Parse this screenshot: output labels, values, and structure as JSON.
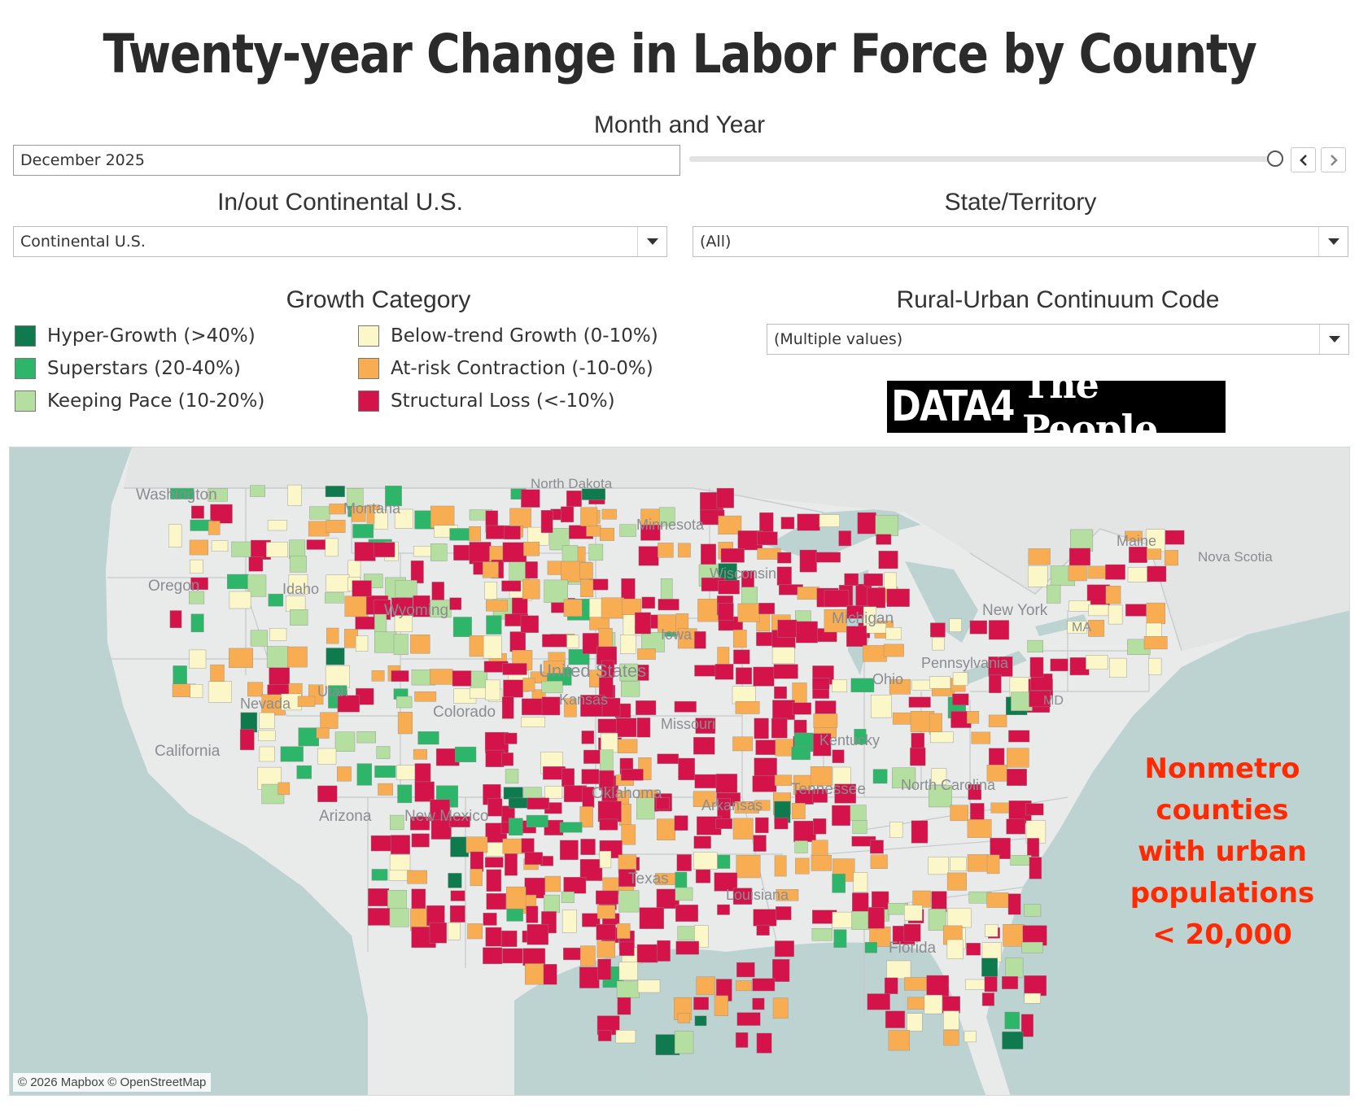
{
  "title": "Twenty-year Change in Labor Force by County",
  "month_year": {
    "label": "Month and Year",
    "value": "December 2025",
    "slider_position": 1.0
  },
  "continental": {
    "label": "In/out Continental U.S.",
    "value": "Continental U.S."
  },
  "state": {
    "label": "State/Territory",
    "value": "(All)"
  },
  "growth_category": {
    "label": "Growth Category",
    "items": [
      {
        "label": "Hyper-Growth (>40%)",
        "color": "#0f7a4e"
      },
      {
        "label": "Superstars (20-40%)",
        "color": "#2db56a"
      },
      {
        "label": "Keeping Pace (10-20%)",
        "color": "#b5dfa0"
      },
      {
        "label": "Below-trend Growth (0-10%)",
        "color": "#fbf7c9"
      },
      {
        "label": "At-risk Contraction (-10-0%)",
        "color": "#f9ad52"
      },
      {
        "label": "Structural Loss (<-10%)",
        "color": "#d4134b"
      }
    ]
  },
  "rucc": {
    "label": "Rural-Urban Continuum Code",
    "value": "(Multiple values)"
  },
  "logo": {
    "part1": "DATA4",
    "part2": "The People"
  },
  "map": {
    "attribution": "© 2026 Mapbox © OpenStreetMap",
    "annotation_lines": [
      "Nonmetro",
      "counties",
      "with urban",
      "populations",
      "< 20,000"
    ],
    "labels": [
      "Washington",
      "Oregon",
      "California",
      "Nevada",
      "Arizona",
      "New Mexico",
      "Idaho",
      "Montana",
      "Wyoming",
      "Utah",
      "Colorado",
      "North Dakota",
      "Minnesota",
      "Wisconsin",
      "Michigan",
      "Iowa",
      "United States",
      "Kansas",
      "Missouri",
      "Oklahoma",
      "Arkansas",
      "Texas",
      "Louisiana",
      "Tennessee",
      "North Carolina",
      "Kentucky",
      "Ohio",
      "Pennsylvania",
      "New York",
      "Maine",
      "MA",
      "MD",
      "Florida",
      "Nova Scotia"
    ]
  },
  "colors": {
    "water": "#bdd3d2",
    "land": "#e9ebeb",
    "annotation": "#ff2a00"
  }
}
